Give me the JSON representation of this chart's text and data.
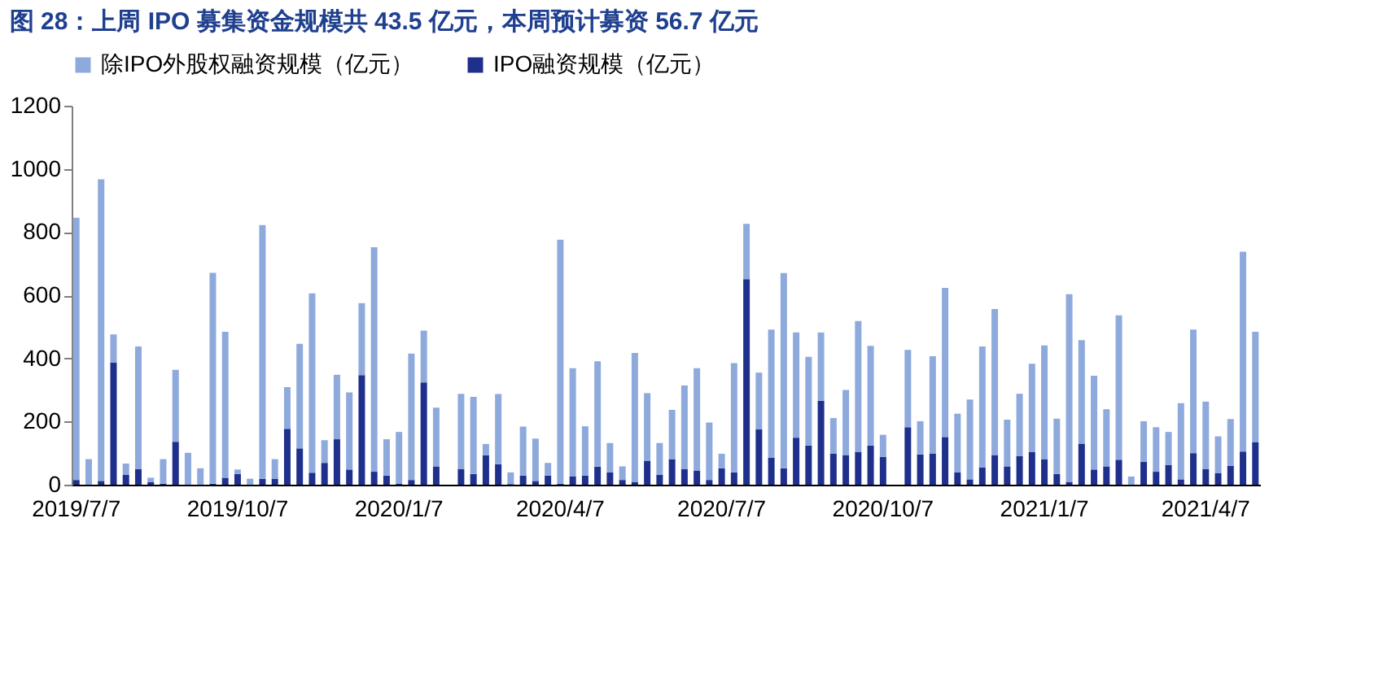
{
  "chart_data": {
    "type": "bar",
    "title": "图 28：上周 IPO 募集资金规模共 43.5 亿元，本周预计募资 56.7 亿元",
    "stacked": true,
    "legend": "top",
    "grid": false,
    "categories": [
      "2019/7/7",
      null,
      null,
      null,
      null,
      null,
      null,
      null,
      null,
      null,
      null,
      null,
      null,
      "2019/10/7",
      null,
      null,
      null,
      null,
      null,
      null,
      null,
      null,
      null,
      null,
      null,
      null,
      "2020/1/7",
      null,
      null,
      null,
      null,
      null,
      null,
      null,
      null,
      null,
      null,
      null,
      null,
      "2020/4/7",
      null,
      null,
      null,
      null,
      null,
      null,
      null,
      null,
      null,
      null,
      null,
      null,
      "2020/7/7",
      null,
      null,
      null,
      null,
      null,
      null,
      null,
      null,
      null,
      null,
      null,
      null,
      "2020/10/7",
      null,
      null,
      null,
      null,
      null,
      null,
      null,
      null,
      null,
      null,
      null,
      null,
      "2021/1/7",
      null,
      null,
      null,
      null,
      null,
      null,
      null,
      null,
      null,
      null,
      null,
      null,
      "2021/4/7",
      null,
      null,
      null,
      null
    ],
    "ylim": [
      0,
      1200
    ],
    "yticks": [
      0,
      200,
      400,
      600,
      800,
      1000,
      1200
    ],
    "series": [
      {
        "name": "IPO融资规模（亿元）",
        "color": "#1f2f8c",
        "values": [
          15,
          0,
          12,
          386,
          31,
          50,
          8,
          3,
          136,
          0,
          0,
          3,
          22,
          34,
          0,
          19,
          19,
          177,
          115,
          38,
          69,
          144,
          48,
          347,
          41,
          29,
          3,
          15,
          324,
          58,
          0,
          50,
          34,
          93,
          65,
          2,
          29,
          12,
          29,
          3,
          26,
          29,
          57,
          39,
          15,
          9,
          76,
          31,
          81,
          50,
          45,
          15,
          52,
          39,
          651,
          175,
          86,
          52,
          149,
          124,
          266,
          98,
          94,
          103,
          124,
          88,
          0,
          182,
          96,
          98,
          151,
          39,
          17,
          55,
          94,
          58,
          91,
          103,
          81,
          34,
          9,
          130,
          48,
          58,
          79,
          0,
          72,
          41,
          62,
          17,
          100,
          50,
          36,
          60,
          105,
          134
        ]
      },
      {
        "name": "除IPO外股权融资规模（亿元）",
        "color": "#8eaadc",
        "values": [
          830,
          81,
          955,
          90,
          36,
          388,
          14,
          78,
          228,
          101,
          52,
          668,
          462,
          14,
          19,
          803,
          62,
          132,
          331,
          568,
          72,
          204,
          244,
          228,
          711,
          115,
          164,
          400,
          164,
          186,
          0,
          238,
          244,
          36,
          222,
          37,
          155,
          134,
          40,
          773,
          343,
          156,
          334,
          93,
          43,
          408,
          214,
          101,
          156,
          264,
          324,
          182,
          46,
          346,
          175,
          180,
          405,
          618,
          333,
          281,
          216,
          113,
          206,
          415,
          316,
          70,
          0,
          245,
          105,
          309,
          472,
          186,
          253,
          383,
          462,
          148,
          197,
          280,
          360,
          175,
          594,
          328,
          297,
          181,
          457,
          26,
          129,
          141,
          105,
          241,
          391,
          213,
          117,
          148,
          633,
          350
        ]
      }
    ]
  }
}
